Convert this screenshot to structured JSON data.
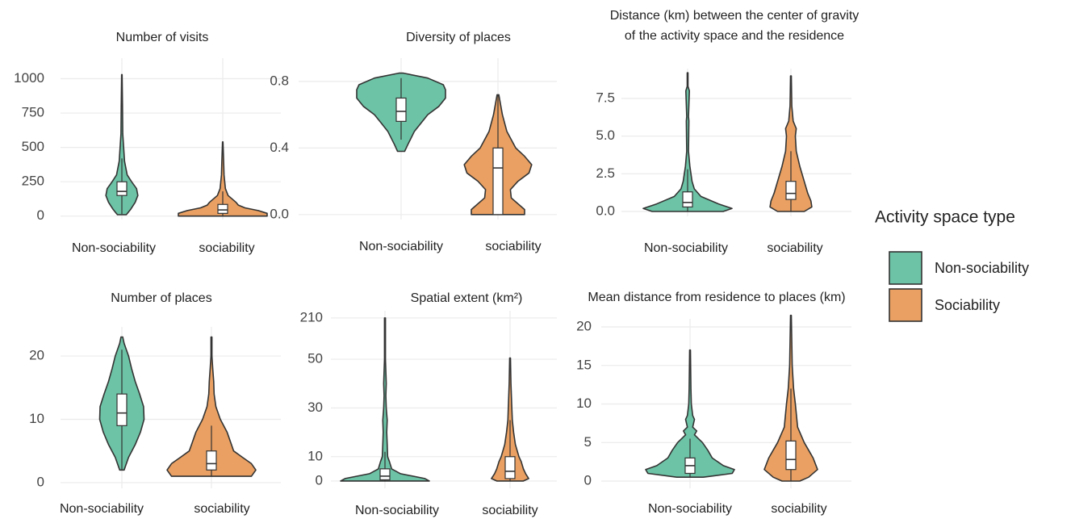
{
  "chart_data": [
    {
      "type": "violin",
      "title": "Number of visits",
      "categories": [
        "Non-sociability",
        "sociability"
      ],
      "ylim": [
        -25,
        1150
      ],
      "yticks": [
        0,
        250,
        500,
        750,
        1000
      ],
      "grid": true,
      "distributions": [
        {
          "density_y": [
            10,
            50,
            100,
            150,
            200,
            250,
            300,
            400,
            500,
            600,
            800,
            1030
          ],
          "density": [
            0.1,
            0.2,
            0.3,
            0.36,
            0.33,
            0.22,
            0.12,
            0.06,
            0.04,
            0.02,
            0.015,
            0.005
          ],
          "box": {
            "low": 15,
            "q1": 150,
            "median": 180,
            "q3": 250,
            "high": 420
          }
        },
        {
          "density_y": [
            0,
            20,
            40,
            60,
            80,
            100,
            150,
            200,
            300,
            400,
            540
          ],
          "density": [
            1,
            1,
            0.8,
            0.5,
            0.35,
            0.3,
            0.12,
            0.06,
            0.03,
            0.02,
            0.005
          ],
          "box": {
            "low": 0,
            "q1": 20,
            "median": 45,
            "q3": 85,
            "high": 180
          }
        }
      ]
    },
    {
      "type": "violin",
      "title": "Diversity of places",
      "categories": [
        "Non-sociability",
        "sociability"
      ],
      "ylim": [
        -0.03,
        0.94
      ],
      "yticks": [
        {
          "value": 0,
          "label": "0.0"
        },
        0.4,
        0.8
      ],
      "grid": true,
      "distributions": [
        {
          "density_y": [
            0.38,
            0.42,
            0.5,
            0.55,
            0.6,
            0.65,
            0.7,
            0.75,
            0.78,
            0.82,
            0.85
          ],
          "density": [
            0.08,
            0.15,
            0.3,
            0.45,
            0.6,
            0.85,
            1,
            1,
            0.95,
            0.6,
            0.05
          ],
          "box": {
            "low": 0.45,
            "q1": 0.56,
            "median": 0.62,
            "q3": 0.7,
            "high": 0.82
          }
        },
        {
          "density_y": [
            0,
            0.03,
            0.1,
            0.15,
            0.2,
            0.25,
            0.3,
            0.35,
            0.4,
            0.5,
            0.6,
            0.72
          ],
          "density": [
            0.6,
            0.6,
            0.3,
            0.28,
            0.45,
            0.7,
            0.76,
            0.6,
            0.4,
            0.2,
            0.1,
            0.02
          ],
          "box": {
            "low": 0,
            "q1": 0,
            "median": 0.28,
            "q3": 0.4,
            "high": 0.72
          }
        }
      ]
    },
    {
      "type": "violin",
      "title": [
        "Distance (km) between the center of gravity",
        "of the activity space and the residence"
      ],
      "categories": [
        "Non-sociability",
        "sociability"
      ],
      "ylim": [
        -0.32,
        9.48
      ],
      "yticks": [
        {
          "value": 0,
          "label": "0.0"
        },
        2.5,
        {
          "value": 5,
          "label": "5.0"
        },
        7.5
      ],
      "grid": true,
      "distributions": [
        {
          "density_y": [
            0,
            0.2,
            0.5,
            1,
            1.5,
            2,
            3,
            4,
            6,
            6.3,
            8,
            8.3,
            9.2
          ],
          "density": [
            0.8,
            1,
            0.7,
            0.3,
            0.15,
            0.1,
            0.05,
            0.02,
            0.03,
            0.02,
            0.04,
            0.01,
            0.01
          ],
          "box": {
            "low": 0,
            "q1": 0.3,
            "median": 0.6,
            "q3": 1.3,
            "high": 2.8
          }
        },
        {
          "density_y": [
            0,
            0.3,
            0.7,
            1.2,
            2,
            3,
            4,
            5,
            5.5,
            6,
            7,
            9
          ],
          "density": [
            0.3,
            0.47,
            0.45,
            0.38,
            0.3,
            0.2,
            0.12,
            0.1,
            0.12,
            0.05,
            0.02,
            0.01
          ],
          "box": {
            "low": 0,
            "q1": 0.8,
            "median": 1.2,
            "q3": 2,
            "high": 4
          }
        }
      ]
    },
    {
      "type": "violin",
      "title": "Number of places",
      "categories": [
        "Non-sociability",
        "sociability"
      ],
      "ylim": [
        -0.9,
        24.6
      ],
      "yticks": [
        0,
        10,
        20
      ],
      "grid": true,
      "distributions": [
        {
          "density_y": [
            2,
            4,
            6,
            8,
            10,
            12,
            14,
            16,
            18,
            20,
            22,
            23
          ],
          "density": [
            0.05,
            0.15,
            0.3,
            0.42,
            0.5,
            0.49,
            0.4,
            0.3,
            0.22,
            0.15,
            0.05,
            0.02
          ],
          "box": {
            "low": 2,
            "q1": 9,
            "median": 11,
            "q3": 14,
            "high": 21
          }
        },
        {
          "density_y": [
            1,
            2,
            3,
            4,
            5,
            6,
            8,
            10,
            12,
            14,
            16,
            18,
            20,
            23
          ],
          "density": [
            0.9,
            1,
            0.9,
            0.7,
            0.5,
            0.45,
            0.35,
            0.2,
            0.1,
            0.06,
            0.05,
            0.03,
            0.01,
            0.01
          ],
          "box": {
            "low": 1,
            "q1": 2,
            "median": 3,
            "q3": 5,
            "high": 9
          }
        }
      ]
    },
    {
      "type": "violin",
      "title": "Spatial extent (km²)",
      "categories": [
        "Non-sociability",
        "sociability"
      ],
      "ylim": [
        -3,
        238
      ],
      "ybreak": 50,
      "yticks": [
        0,
        10,
        30,
        50,
        210
      ],
      "grid": true,
      "distributions": [
        {
          "density_y": [
            0,
            1,
            3,
            5,
            8,
            10,
            15,
            20,
            25,
            30,
            35,
            40,
            50,
            210
          ],
          "density": [
            1,
            0.9,
            0.35,
            0.15,
            0.1,
            0.06,
            0.05,
            0.04,
            0.05,
            0.03,
            0.02,
            0.03,
            0.01,
            0.01
          ],
          "box": {
            "low": 0,
            "q1": 0.5,
            "median": 2,
            "q3": 5,
            "high": 12
          }
        },
        {
          "density_y": [
            0,
            1,
            3,
            5,
            8,
            10,
            15,
            20,
            25,
            30,
            40,
            55
          ],
          "density": [
            0.3,
            0.42,
            0.35,
            0.3,
            0.25,
            0.2,
            0.12,
            0.08,
            0.05,
            0.04,
            0.02,
            0.01
          ],
          "box": {
            "low": 0,
            "q1": 1,
            "median": 4,
            "q3": 10,
            "high": 25
          }
        }
      ]
    },
    {
      "type": "violin",
      "title": "Mean distance from residence to places (km)",
      "categories": [
        "Non-sociability",
        "sociability"
      ],
      "ylim": [
        -0.94,
        21.05
      ],
      "yticks": [
        0,
        5,
        10,
        15,
        20
      ],
      "grid": true,
      "distributions": [
        {
          "density_y": [
            0.5,
            1,
            1.5,
            2,
            3,
            4,
            5,
            6,
            6.5,
            7,
            8,
            8.5,
            10,
            12,
            17
          ],
          "density": [
            0.3,
            0.95,
            1,
            0.75,
            0.5,
            0.4,
            0.28,
            0.1,
            0.15,
            0.06,
            0.1,
            0.06,
            0.03,
            0.02,
            0.01
          ],
          "box": {
            "low": 0.5,
            "q1": 1,
            "median": 2,
            "q3": 3,
            "high": 5.5
          }
        },
        {
          "density_y": [
            0,
            0.5,
            1.5,
            3,
            4,
            5,
            7,
            10,
            12,
            15,
            21.5
          ],
          "density": [
            0.2,
            0.4,
            0.6,
            0.5,
            0.4,
            0.3,
            0.15,
            0.1,
            0.06,
            0.03,
            0.01
          ],
          "box": {
            "low": 0,
            "q1": 1.5,
            "median": 2.8,
            "q3": 5.2,
            "high": 12
          }
        }
      ]
    }
  ],
  "legend": {
    "title": "Activity space type",
    "items": [
      {
        "name": "Non-sociability",
        "color": "#6cc3a6"
      },
      {
        "name": "Sociability",
        "color": "#e9a062"
      }
    ]
  }
}
